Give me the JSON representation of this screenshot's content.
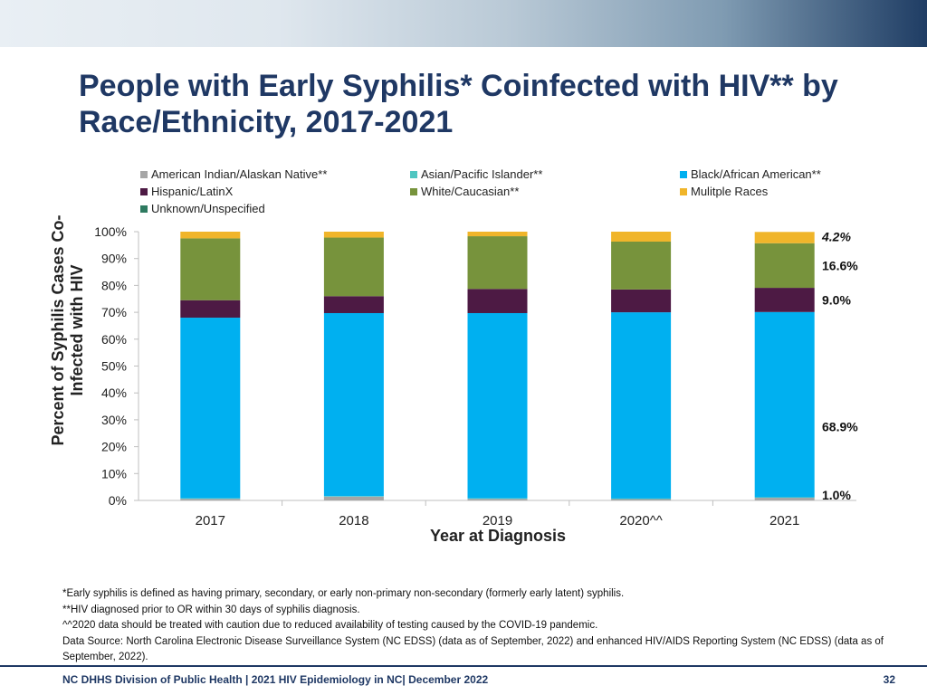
{
  "slide": {
    "title": "People with Early Syphilis* Coinfected with HIV** by Race/Ethnicity, 2017-2021",
    "footer": "NC DHHS Division of Public Health | 2021 HIV Epidemiology in NC| December 2022",
    "page_number": "32",
    "notes": [
      "*Early syphilis is defined as having primary, secondary, or early non-primary non-secondary (formerly early latent) syphilis.",
      "**HIV diagnosed prior to OR within 30 days of syphilis diagnosis.",
      "^^2020 data should be treated with caution due to reduced availability of testing caused by the COVID-19 pandemic.",
      "Data Source: North Carolina Electronic Disease Surveillance System (NC EDSS) (data as of September, 2022) and enhanced HIV/AIDS Reporting System (NC EDSS) (data as of September, 2022)."
    ]
  },
  "chart_data": {
    "type": "bar",
    "stacked": true,
    "xlabel": "Year at Diagnosis",
    "ylabel": "Percent  of Syphilis Cases Co-Infected with HIV",
    "ylim": [
      0,
      100
    ],
    "yticks": [
      "0%",
      "10%",
      "20%",
      "30%",
      "40%",
      "50%",
      "60%",
      "70%",
      "80%",
      "90%",
      "100%"
    ],
    "categories": [
      "2017",
      "2018",
      "2019",
      "2020^^",
      "2021"
    ],
    "legend_position": "top",
    "series": [
      {
        "name": "American Indian/Alaskan Native**",
        "color": "#a6a6a6",
        "values": [
          0.6,
          1.4,
          0.6,
          0.5,
          1.0
        ]
      },
      {
        "name": "Asian/Pacific Islander**",
        "color": "#4fc6c1",
        "values": [
          0.2,
          0.2,
          0.2,
          0.2,
          0.2
        ]
      },
      {
        "name": "Black/African American**",
        "color": "#00b0f0",
        "values": [
          67.2,
          68.1,
          68.9,
          69.3,
          68.9
        ]
      },
      {
        "name": "Hispanic/LatinX",
        "color": "#4d1a44",
        "values": [
          6.5,
          6.3,
          9.0,
          8.5,
          9.0
        ]
      },
      {
        "name": "White/Caucasian**",
        "color": "#77933c",
        "values": [
          23.0,
          21.8,
          19.6,
          17.8,
          16.6
        ]
      },
      {
        "name": "Mulitple Races",
        "color": "#f0b52a",
        "values": [
          2.5,
          2.2,
          1.7,
          3.7,
          4.2
        ]
      },
      {
        "name": "Unknown/Unspecified",
        "color": "#2e7a60",
        "values": [
          0,
          0,
          0,
          0,
          0
        ]
      }
    ],
    "annotations": [
      {
        "label": "4.2%",
        "series": "Mulitple Races",
        "category": "2021",
        "italic": true
      },
      {
        "label": "16.6%",
        "series": "White/Caucasian**",
        "category": "2021"
      },
      {
        "label": "9.0%",
        "series": "Hispanic/LatinX",
        "category": "2021"
      },
      {
        "label": "68.9%",
        "series": "Black/African American**",
        "category": "2021"
      },
      {
        "label": "1.0%",
        "series": "American Indian/Alaskan Native**",
        "category": "2021"
      }
    ]
  }
}
